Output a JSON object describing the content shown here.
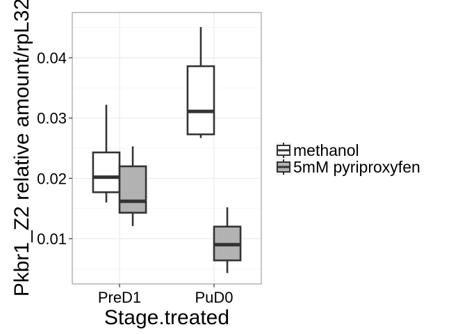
{
  "chart_data": {
    "type": "boxplot",
    "xlabel": "Stage.treated",
    "ylabel": "Pkbr1_Z2 relative amount/rpL32",
    "categories": [
      "PreD1",
      "PuD0"
    ],
    "y_ticks": [
      0.01,
      0.02,
      0.03,
      0.04
    ],
    "y_tick_labels": [
      "0.01",
      "0.02",
      "0.03",
      "0.04"
    ],
    "ylim": [
      0.0025,
      0.0475
    ],
    "grid": true,
    "legend_position": "right",
    "series": [
      {
        "name": "methanol",
        "fill": "#ffffff",
        "boxes": [
          {
            "category": "PreD1",
            "min": 0.016,
            "q1": 0.0177,
            "median": 0.0202,
            "q3": 0.0243,
            "max": 0.0322
          },
          {
            "category": "PuD0",
            "min": 0.0267,
            "q1": 0.0273,
            "median": 0.0311,
            "q3": 0.0386,
            "max": 0.0451
          }
        ]
      },
      {
        "name": "5mM pyriproxyfen",
        "fill": "#b2b2b2",
        "boxes": [
          {
            "category": "PreD1",
            "min": 0.0121,
            "q1": 0.0143,
            "median": 0.0162,
            "q3": 0.022,
            "max": 0.0253
          },
          {
            "category": "PuD0",
            "min": 0.0043,
            "q1": 0.0064,
            "median": 0.009,
            "q3": 0.012,
            "max": 0.0152
          }
        ]
      }
    ]
  }
}
